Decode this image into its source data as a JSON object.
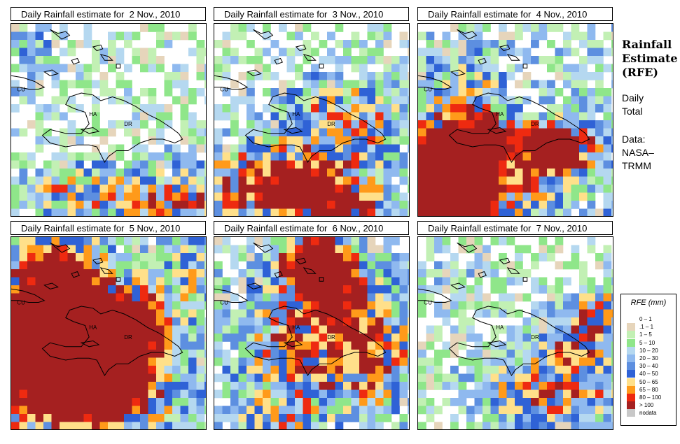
{
  "panels": [
    {
      "title": "Daily Rainfall estimate for  2 Nov., 2010",
      "pattern": "nov2"
    },
    {
      "title": "Daily Rainfall estimate for  3 Nov., 2010",
      "pattern": "nov3"
    },
    {
      "title": "Daily Rainfall estimate for  4 Nov., 2010",
      "pattern": "nov4"
    },
    {
      "title": "Daily Rainfall estimate for  5 Nov., 2010",
      "pattern": "nov5"
    },
    {
      "title": "Daily Rainfall estimate for  6 Nov., 2010",
      "pattern": "nov6"
    },
    {
      "title": "Daily Rainfall estimate for  7 Nov., 2010",
      "pattern": "nov7"
    }
  ],
  "map_labels": {
    "cu": "CU",
    "ha": "HA",
    "dr": "DR"
  },
  "side": {
    "title_lines": [
      "Rainfall",
      "Estimate",
      "(RFE)"
    ],
    "daily_lines": [
      "Daily",
      "Total"
    ],
    "data_lines": [
      "Data:",
      "NASA–",
      "TRMM"
    ]
  },
  "legend": {
    "title": "RFE (mm)",
    "items": [
      {
        "label": "0 – 1",
        "color": "#ffffff"
      },
      {
        "label": ".1 – 1",
        "color": "#e6d5bb"
      },
      {
        "label": "1 – 5",
        "color": "#c2f0b4"
      },
      {
        "label": "5 – 10",
        "color": "#8fe68a"
      },
      {
        "label": "10 – 20",
        "color": "#b5d8f0"
      },
      {
        "label": "20 – 30",
        "color": "#8fb9ef"
      },
      {
        "label": "30 – 40",
        "color": "#5d8fe0"
      },
      {
        "label": "40 – 50",
        "color": "#2f62d6"
      },
      {
        "label": "50 – 65",
        "color": "#ffe08a"
      },
      {
        "label": "65 – 80",
        "color": "#ff9a1a"
      },
      {
        "label": "80 – 100",
        "color": "#ee2a10"
      },
      {
        "label": "> 100",
        "color": "#a52020"
      },
      {
        "label": "nodata",
        "color": "#c8c8c8"
      }
    ]
  }
}
